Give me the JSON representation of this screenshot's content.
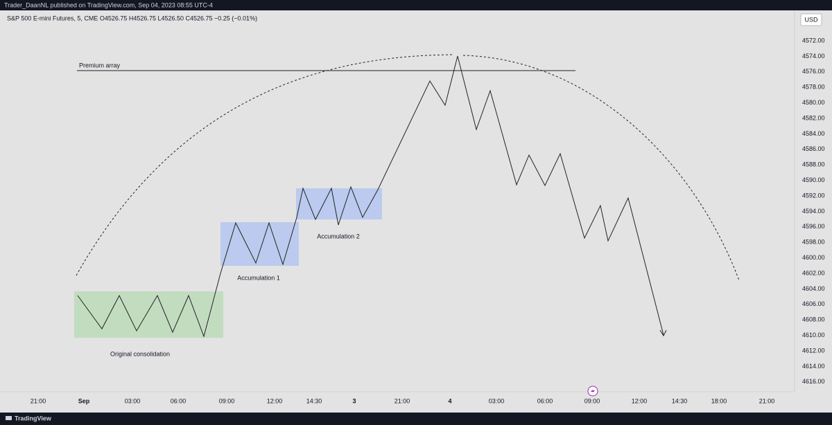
{
  "header": {
    "publisher_line": "Trader_DaanNL published on TradingView.com, Sep 04, 2023 08:55 UTC-4"
  },
  "legend": {
    "symbol_line": "S&P 500 E-mini Futures, 5, CME  O4526.75  H4526.75  L4526.50  C4526.75  −0.25 (−0.01%)"
  },
  "price_axis": {
    "currency": "USD",
    "labels": [
      "4572.00",
      "4574.00",
      "4576.00",
      "4578.00",
      "4580.00",
      "4582.00",
      "4584.00",
      "4586.00",
      "4588.00",
      "4590.00",
      "4592.00",
      "4594.00",
      "4596.00",
      "4598.00",
      "4600.00",
      "4602.00",
      "4604.00",
      "4606.00",
      "4608.00",
      "4610.00",
      "4612.00",
      "4614.00",
      "4616.00"
    ]
  },
  "time_axis": {
    "labels": [
      "21:00",
      "Sep",
      "03:00",
      "06:00",
      "09:00",
      "12:00",
      "14:30",
      "3",
      "21:00",
      "4",
      "03:00",
      "06:00",
      "09:00",
      "12:00",
      "14:30",
      "18:00",
      "21:00"
    ]
  },
  "annotations": {
    "premium": "Premium array",
    "accumulation_1": "Accumulation 1",
    "accumulation_2": "Accumulation 2",
    "original": "Original consolidation"
  },
  "footer": {
    "brand": "TradingView"
  }
}
